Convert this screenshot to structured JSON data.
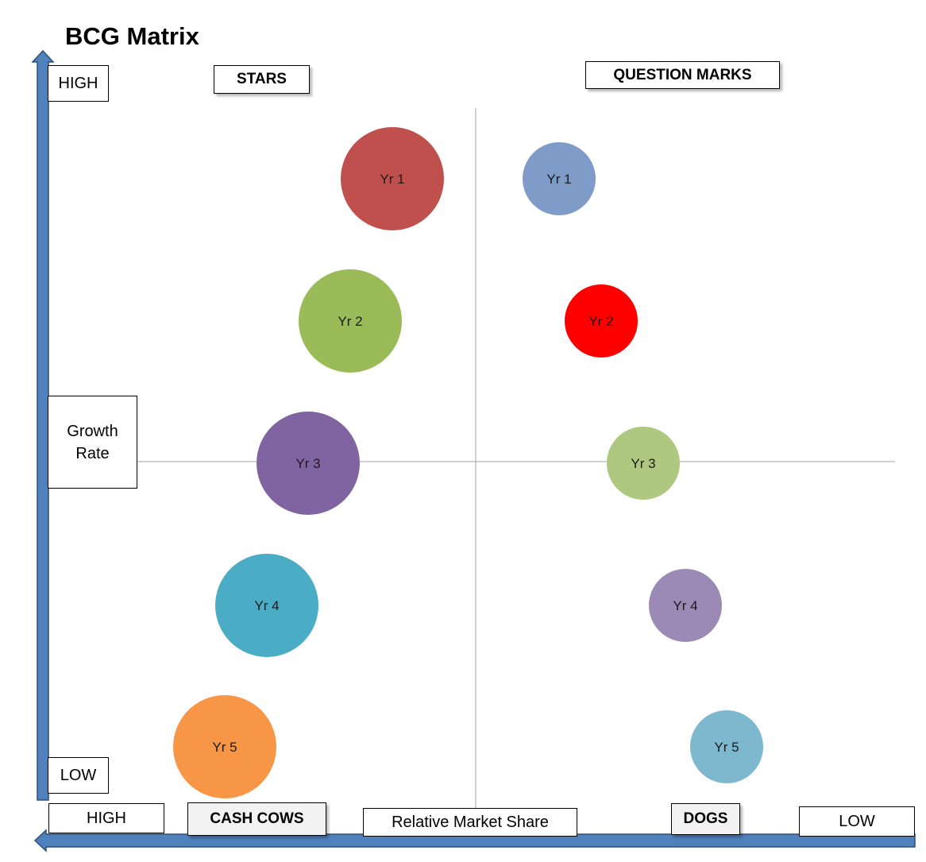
{
  "title": "BCG Matrix",
  "y_axis": {
    "label": "Growth Rate",
    "high": "HIGH",
    "low": "LOW"
  },
  "x_axis": {
    "label": "Relative Market Share",
    "high": "HIGH",
    "low": "LOW"
  },
  "quadrants": {
    "stars": "STARS",
    "question_marks": "QUESTION MARKS",
    "cash_cows": "CASH COWS",
    "dogs": "DOGS"
  },
  "bubbles_left": [
    {
      "label": "Yr 1",
      "color": "#c0504d"
    },
    {
      "label": "Yr 2",
      "color": "#9bbb59"
    },
    {
      "label": "Yr 3",
      "color": "#8064a2"
    },
    {
      "label": "Yr 4",
      "color": "#4bacc6"
    },
    {
      "label": "Yr 5",
      "color": "#f79646"
    }
  ],
  "bubbles_right": [
    {
      "label": "Yr 1",
      "color": "#7f9cc9"
    },
    {
      "label": "Yr 2",
      "color": "#ff0000"
    },
    {
      "label": "Yr 3",
      "color": "#aec87f"
    },
    {
      "label": "Yr 4",
      "color": "#9b8ab6"
    },
    {
      "label": "Yr 5",
      "color": "#7db8cf"
    }
  ],
  "colors": {
    "axis_arrow": "#4f81bd",
    "axis_arrow_border": "#2f4f7a",
    "grid_line": "#a6a6a6"
  }
}
